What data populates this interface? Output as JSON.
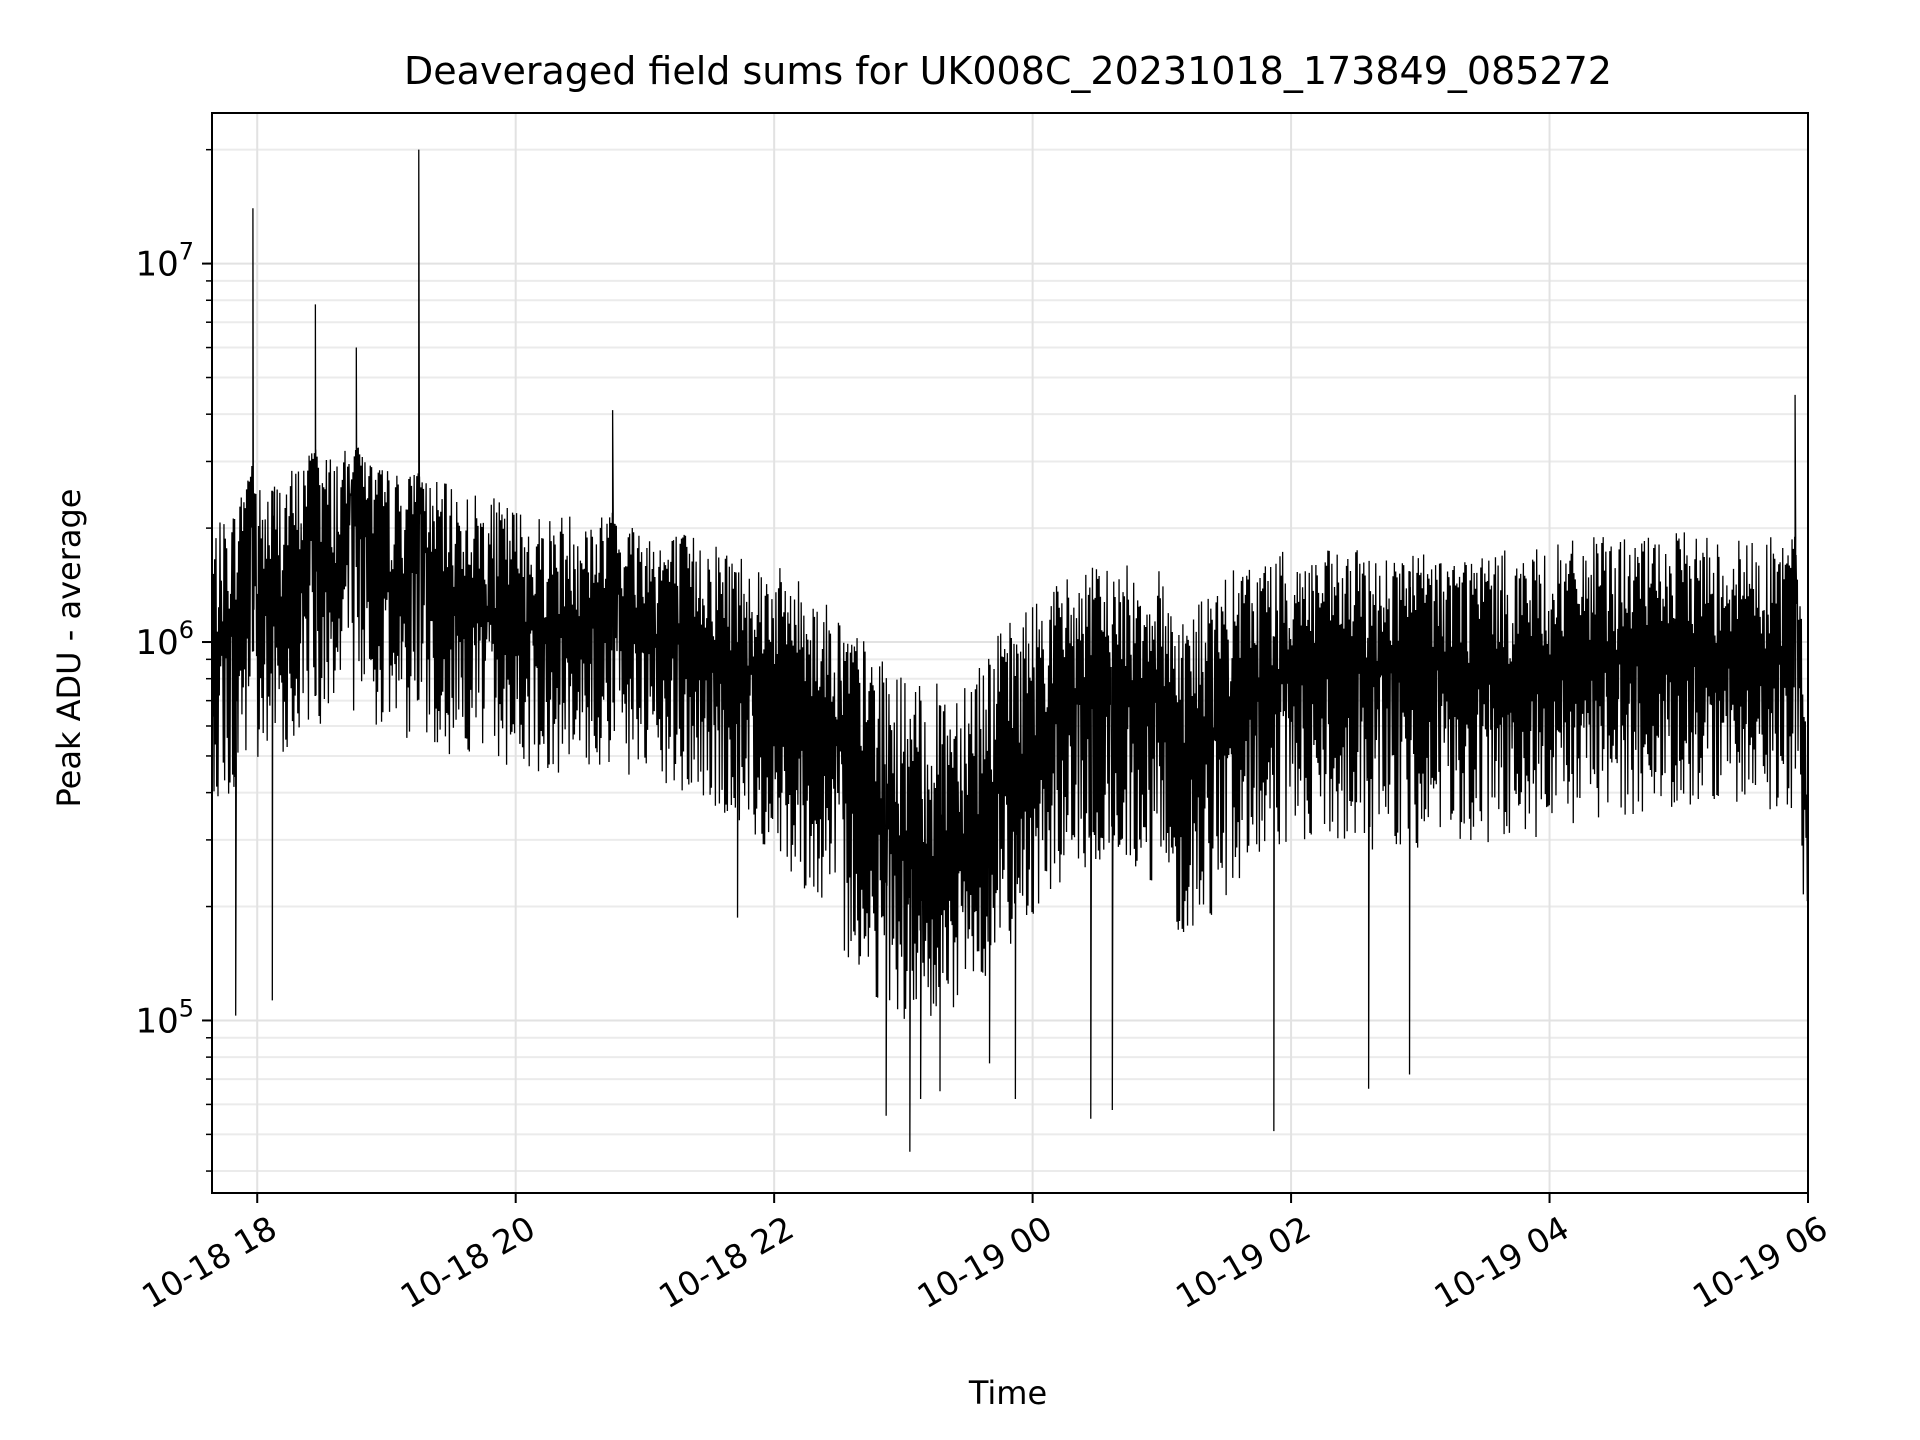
{
  "chart_data": {
    "type": "line",
    "title": "Deaveraged field sums for UK008C_20231018_173849_085272",
    "xlabel": "Time",
    "ylabel": "Peak ADU - average",
    "y_scale": "log",
    "xlim": [
      "2023-10-18 17:39",
      "2023-10-19 06:00"
    ],
    "ylim": [
      35000,
      25000000
    ],
    "grid": true,
    "line_color": "#000000",
    "x_ticks": [
      {
        "value": "2023-10-18 18:00",
        "label": "10-18 18"
      },
      {
        "value": "2023-10-18 20:00",
        "label": "10-18 20"
      },
      {
        "value": "2023-10-18 22:00",
        "label": "10-18 22"
      },
      {
        "value": "2023-10-19 00:00",
        "label": "10-19 00"
      },
      {
        "value": "2023-10-19 02:00",
        "label": "10-19 02"
      },
      {
        "value": "2023-10-19 04:00",
        "label": "10-19 04"
      },
      {
        "value": "2023-10-19 06:00",
        "label": "10-19 06"
      }
    ],
    "y_ticks": [
      {
        "value": 100000,
        "base": "10",
        "exp": "5"
      },
      {
        "value": 1000000,
        "base": "10",
        "exp": "6"
      },
      {
        "value": 10000000,
        "base": "10",
        "exp": "7"
      }
    ],
    "series": [
      {
        "x": [
          "2023-10-18 17:40",
          "2023-10-18 17:50",
          "2023-10-18 17:58",
          "2023-10-18 18:00",
          "2023-10-18 18:10",
          "2023-10-18 18:20",
          "2023-10-18 18:27",
          "2023-10-18 18:30",
          "2023-10-18 18:40",
          "2023-10-18 18:46",
          "2023-10-18 18:55",
          "2023-10-18 19:00",
          "2023-10-18 19:10",
          "2023-10-18 19:15",
          "2023-10-18 19:20",
          "2023-10-18 19:30",
          "2023-10-18 19:40",
          "2023-10-18 19:50",
          "2023-10-18 20:00",
          "2023-10-18 20:10",
          "2023-10-18 20:20",
          "2023-10-18 20:30",
          "2023-10-18 20:40",
          "2023-10-18 20:45",
          "2023-10-18 20:50",
          "2023-10-18 21:00",
          "2023-10-18 21:10",
          "2023-10-18 21:20",
          "2023-10-18 21:30",
          "2023-10-18 21:40",
          "2023-10-18 21:50",
          "2023-10-18 22:00",
          "2023-10-18 22:10",
          "2023-10-18 22:20",
          "2023-10-18 22:30",
          "2023-10-18 22:40",
          "2023-10-18 22:50",
          "2023-10-18 23:00",
          "2023-10-18 23:10",
          "2023-10-18 23:20",
          "2023-10-18 23:30",
          "2023-10-18 23:40",
          "2023-10-18 23:50",
          "2023-10-19 00:00",
          "2023-10-19 00:10",
          "2023-10-19 00:20",
          "2023-10-19 00:30",
          "2023-10-19 00:40",
          "2023-10-19 00:50",
          "2023-10-19 01:00",
          "2023-10-19 01:10",
          "2023-10-19 01:20",
          "2023-10-19 01:30",
          "2023-10-19 01:40",
          "2023-10-19 01:50",
          "2023-10-19 02:00",
          "2023-10-19 02:10",
          "2023-10-19 02:20",
          "2023-10-19 02:30",
          "2023-10-19 02:40",
          "2023-10-19 02:50",
          "2023-10-19 03:00",
          "2023-10-19 03:10",
          "2023-10-19 03:20",
          "2023-10-19 03:30",
          "2023-10-19 03:40",
          "2023-10-19 03:50",
          "2023-10-19 04:00",
          "2023-10-19 04:10",
          "2023-10-19 04:20",
          "2023-10-19 04:30",
          "2023-10-19 04:40",
          "2023-10-19 04:50",
          "2023-10-19 05:00",
          "2023-10-19 05:10",
          "2023-10-19 05:20",
          "2023-10-19 05:30",
          "2023-10-19 05:40",
          "2023-10-19 05:50",
          "2023-10-19 05:54",
          "2023-10-19 06:00"
        ],
        "y": [
          900000,
          1200000,
          14000000,
          1100000,
          1300000,
          1400000,
          7800000,
          1500000,
          1600000,
          6000000,
          1500000,
          1400000,
          1500000,
          20000000,
          1400000,
          1300000,
          1300000,
          1200000,
          1150000,
          1100000,
          1100000,
          1150000,
          1100000,
          4100000,
          1100000,
          1050000,
          1000000,
          1000000,
          950000,
          900000,
          850000,
          800000,
          750000,
          650000,
          550000,
          450000,
          350000,
          300000,
          250000,
          280000,
          320000,
          380000,
          450000,
          550000,
          650000,
          700000,
          750000,
          750000,
          750000,
          700000,
          500000,
          550000,
          650000,
          750000,
          800000,
          850000,
          850000,
          850000,
          850000,
          850000,
          850000,
          850000,
          850000,
          850000,
          850000,
          850000,
          850000,
          850000,
          900000,
          950000,
          950000,
          950000,
          950000,
          1000000,
          1000000,
          950000,
          950000,
          950000,
          950000,
          4500000,
          250000
        ],
        "band_low": [
          400000,
          350000,
          500000,
          450000,
          500000,
          550000,
          600000,
          600000,
          650000,
          650000,
          600000,
          600000,
          550000,
          550000,
          550000,
          500000,
          500000,
          480000,
          460000,
          450000,
          450000,
          460000,
          450000,
          450000,
          440000,
          420000,
          400000,
          380000,
          360000,
          330000,
          300000,
          270000,
          240000,
          200000,
          160000,
          130000,
          110000,
          100000,
          90000,
          100000,
          115000,
          135000,
          160000,
          190000,
          220000,
          240000,
          250000,
          250000,
          240000,
          220000,
          160000,
          180000,
          210000,
          250000,
          270000,
          280000,
          280000,
          280000,
          280000,
          280000,
          280000,
          280000,
          280000,
          280000,
          280000,
          280000,
          280000,
          290000,
          310000,
          330000,
          340000,
          350000,
          360000,
          370000,
          370000,
          360000,
          360000,
          360000,
          360000,
          360000,
          150000
        ],
        "band_high": [
          2000000,
          2300000,
          3000000,
          2600000,
          2800000,
          3000000,
          3300000,
          3200000,
          3200000,
          3300000,
          3000000,
          2900000,
          2800000,
          2800000,
          2700000,
          2600000,
          2500000,
          2400000,
          2300000,
          2200000,
          2200000,
          2250000,
          2200000,
          2200000,
          2200000,
          2100000,
          2000000,
          1950000,
          1900000,
          1800000,
          1700000,
          1600000,
          1500000,
          1350000,
          1200000,
          1050000,
          900000,
          820000,
          750000,
          800000,
          900000,
          1000000,
          1150000,
          1300000,
          1450000,
          1550000,
          1600000,
          1600000,
          1600000,
          1550000,
          1250000,
          1350000,
          1500000,
          1650000,
          1700000,
          1750000,
          1750000,
          1750000,
          1750000,
          1750000,
          1750000,
          1750000,
          1750000,
          1750000,
          1750000,
          1750000,
          1750000,
          1800000,
          1850000,
          1900000,
          1900000,
          1900000,
          1900000,
          1950000,
          1950000,
          1900000,
          1900000,
          1900000,
          1900000,
          1900000,
          700000
        ],
        "min_dips": [
          {
            "x": "2023-10-18 17:50",
            "y": 103000
          },
          {
            "x": "2023-10-18 18:07",
            "y": 113000
          },
          {
            "x": "2023-10-18 21:43",
            "y": 187000
          },
          {
            "x": "2023-10-18 22:52",
            "y": 56000
          },
          {
            "x": "2023-10-18 23:03",
            "y": 45000
          },
          {
            "x": "2023-10-18 23:08",
            "y": 62000
          },
          {
            "x": "2023-10-18 23:17",
            "y": 65000
          },
          {
            "x": "2023-10-18 23:40",
            "y": 77000
          },
          {
            "x": "2023-10-18 23:52",
            "y": 62000
          },
          {
            "x": "2023-10-19 00:27",
            "y": 55000
          },
          {
            "x": "2023-10-19 00:37",
            "y": 58000
          },
          {
            "x": "2023-10-19 01:52",
            "y": 51000
          },
          {
            "x": "2023-10-19 02:36",
            "y": 66000
          },
          {
            "x": "2023-10-19 02:55",
            "y": 72000
          }
        ]
      }
    ]
  }
}
